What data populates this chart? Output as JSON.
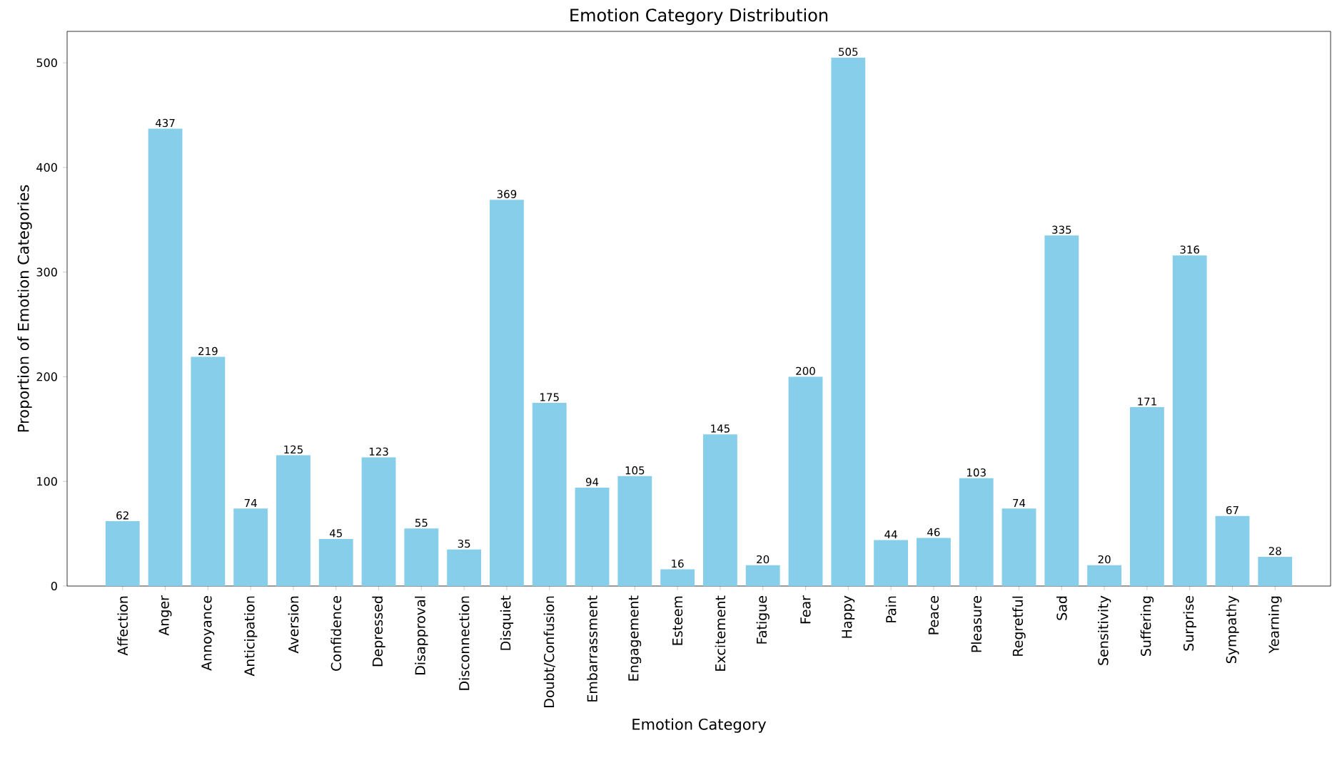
{
  "chart_data": {
    "type": "bar",
    "title": "Emotion Category Distribution",
    "xlabel": "Emotion Category",
    "ylabel": "Proportion of Emotion Categories",
    "categories": [
      "Affection",
      "Anger",
      "Annoyance",
      "Anticipation",
      "Aversion",
      "Confidence",
      "Depressed",
      "Disapproval",
      "Disconnection",
      "Disquiet",
      "Doubt/Confusion",
      "Embarrassment",
      "Engagement",
      "Esteem",
      "Excitement",
      "Fatigue",
      "Fear",
      "Happy",
      "Pain",
      "Peace",
      "Pleasure",
      "Regretful",
      "Sad",
      "Sensitivity",
      "Suffering",
      "Surprise",
      "Sympathy",
      "Yearning"
    ],
    "values": [
      62,
      437,
      219,
      74,
      125,
      45,
      123,
      55,
      35,
      369,
      175,
      94,
      105,
      16,
      145,
      20,
      200,
      505,
      44,
      46,
      103,
      74,
      335,
      20,
      171,
      316,
      67,
      28
    ],
    "color": "#87ceeb",
    "ylim": [
      0,
      530
    ],
    "yticks": [
      0,
      100,
      200,
      300,
      400,
      500
    ],
    "data_labels": true
  }
}
